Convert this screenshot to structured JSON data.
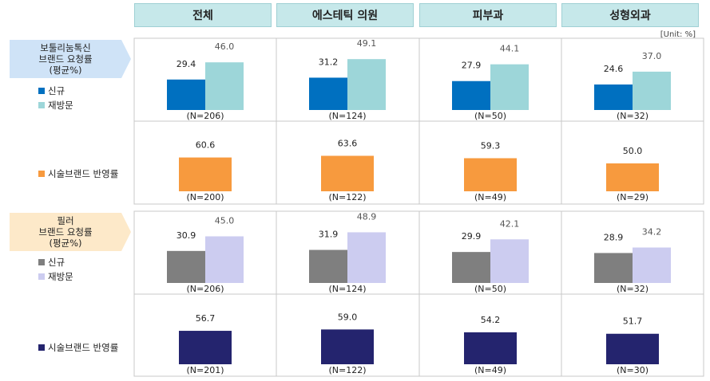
{
  "unit": "[Unit: %]",
  "columns": [
    "전체",
    "에스테틱 의원",
    "피부과",
    "성형외과"
  ],
  "colors": {
    "new_botox": "#0070c0",
    "revisit_botox": "#9dd6d9",
    "brand_botox": "#f79a3e",
    "new_filler": "#7f7f7f",
    "revisit_filler": "#ccccf0",
    "brand_filler": "#24246e",
    "header_bg": "#c6e8ea",
    "tag_botox": "#cfe3f7",
    "tag_filler": "#fde9c9"
  },
  "sections": {
    "botox_tag": [
      "보툴리눔톡신",
      "브랜드 요청률",
      "(평균%)"
    ],
    "filler_tag": [
      "필러",
      "브랜드 요청률",
      "(평균%)"
    ]
  },
  "legend": {
    "new": "신규",
    "revisit": "재방문",
    "brand": "시술브랜드 반영률"
  },
  "chart_data": [
    {
      "type": "bar",
      "title": "보툴리눔톡신 브랜드 요청률 (평균%)",
      "categories": [
        "전체",
        "에스테틱 의원",
        "피부과",
        "성형외과"
      ],
      "series": [
        {
          "name": "신규",
          "values": [
            29.4,
            31.2,
            27.9,
            24.6
          ]
        },
        {
          "name": "재방문",
          "values": [
            46.0,
            49.1,
            44.1,
            37.0
          ]
        }
      ],
      "n_labels": [
        "(N=206)",
        "(N=124)",
        "(N=50)",
        "(N=32)"
      ]
    },
    {
      "type": "bar",
      "categories": [
        "전체",
        "에스테틱 의원",
        "피부과",
        "성형외과"
      ],
      "series": [
        {
          "name": "시술브랜드 반영률",
          "values": [
            60.6,
            63.6,
            59.3,
            50.0
          ]
        }
      ],
      "n_labels": [
        "(N=200)",
        "(N=122)",
        "(N=49)",
        "(N=29)"
      ]
    },
    {
      "type": "bar",
      "title": "필러 브랜드 요청률 (평균%)",
      "categories": [
        "전체",
        "에스테틱 의원",
        "피부과",
        "성형외과"
      ],
      "series": [
        {
          "name": "신규",
          "values": [
            30.9,
            31.9,
            29.9,
            28.9
          ]
        },
        {
          "name": "재방문",
          "values": [
            45.0,
            48.9,
            42.1,
            34.2
          ]
        }
      ],
      "n_labels": [
        "(N=206)",
        "(N=124)",
        "(N=50)",
        "(N=32)"
      ]
    },
    {
      "type": "bar",
      "categories": [
        "전체",
        "에스테틱 의원",
        "피부과",
        "성형외과"
      ],
      "series": [
        {
          "name": "시술브랜드 반영률",
          "values": [
            56.7,
            59.0,
            54.2,
            51.7
          ]
        }
      ],
      "n_labels": [
        "(N=201)",
        "(N=122)",
        "(N=49)",
        "(N=30)"
      ]
    }
  ]
}
